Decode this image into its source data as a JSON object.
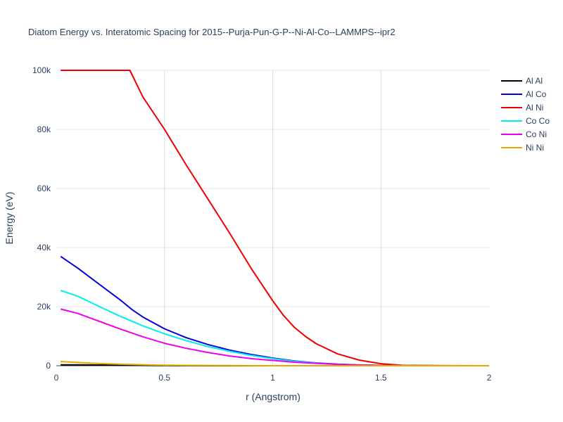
{
  "chart_data": {
    "type": "line",
    "title": "Diatom Energy vs. Interatomic Spacing for 2015--Purja-Pun-G-P--Ni-Al-Co--LAMMPS--ipr2",
    "xlabel": "r (Angstrom)",
    "ylabel": "Energy (eV)",
    "xlim": [
      0,
      2
    ],
    "ylim": [
      0,
      100000
    ],
    "x_ticks": [
      0,
      0.5,
      1,
      1.5,
      2
    ],
    "x_tick_labels": [
      "0",
      "0.5",
      "1",
      "1.5",
      "2"
    ],
    "y_ticks": [
      0,
      20000,
      40000,
      60000,
      80000,
      100000
    ],
    "y_tick_labels": [
      "0",
      "20k",
      "40k",
      "60k",
      "80k",
      "100k"
    ],
    "grid": true,
    "legend_position": "top-right",
    "series": [
      {
        "name": "Al Al",
        "color": "#000000",
        "x": [
          0.02,
          0.1,
          0.2,
          0.3,
          0.4,
          0.5,
          0.6,
          0.8,
          1.0,
          1.5,
          2.0
        ],
        "y": [
          300,
          280,
          250,
          200,
          130,
          60,
          20,
          0,
          0,
          0,
          0
        ]
      },
      {
        "name": "Al Co",
        "color": "#0000dd",
        "x": [
          0.02,
          0.1,
          0.2,
          0.3,
          0.35,
          0.4,
          0.5,
          0.6,
          0.7,
          0.8,
          0.9,
          1.0,
          1.1,
          1.2,
          1.3,
          1.4,
          1.5,
          1.6,
          1.8,
          2.0
        ],
        "y": [
          37000,
          33000,
          27500,
          22000,
          19000,
          16500,
          12500,
          9500,
          7200,
          5300,
          3800,
          2600,
          1600,
          950,
          520,
          270,
          120,
          50,
          10,
          0
        ]
      },
      {
        "name": "Al Ni",
        "color": "#ee0000",
        "x": [
          0.02,
          0.1,
          0.2,
          0.3,
          0.34,
          0.4,
          0.5,
          0.6,
          0.7,
          0.8,
          0.9,
          1.0,
          1.05,
          1.1,
          1.15,
          1.2,
          1.3,
          1.4,
          1.5,
          1.6,
          1.8,
          2.0
        ],
        "y": [
          100000,
          100000,
          100000,
          100000,
          100000,
          91000,
          80000,
          68000,
          56500,
          45000,
          33000,
          22000,
          17000,
          13000,
          10000,
          7500,
          4000,
          1900,
          700,
          150,
          20,
          0
        ]
      },
      {
        "name": "Co Co",
        "color": "#00eeee",
        "x": [
          0.02,
          0.1,
          0.2,
          0.3,
          0.4,
          0.5,
          0.6,
          0.7,
          0.8,
          0.9,
          1.0,
          1.1,
          1.2,
          1.3,
          1.4,
          1.5,
          1.6,
          1.8,
          2.0
        ],
        "y": [
          25500,
          23500,
          20000,
          16600,
          13500,
          10800,
          8500,
          6500,
          4900,
          3500,
          2400,
          1500,
          900,
          450,
          200,
          80,
          30,
          5,
          0
        ]
      },
      {
        "name": "Co Ni",
        "color": "#ee00ee",
        "x": [
          0.02,
          0.1,
          0.2,
          0.3,
          0.4,
          0.5,
          0.6,
          0.7,
          0.8,
          0.9,
          1.0,
          1.1,
          1.2,
          1.3,
          1.4,
          1.5,
          1.6,
          1.8,
          2.0
        ],
        "y": [
          19200,
          17700,
          15000,
          12300,
          9800,
          7600,
          5900,
          4500,
          3300,
          2400,
          1800,
          1200,
          800,
          450,
          220,
          90,
          30,
          5,
          0
        ]
      },
      {
        "name": "Ni Ni",
        "color": "#e8a800",
        "x": [
          0.02,
          0.1,
          0.2,
          0.3,
          0.4,
          0.5,
          0.6,
          0.8,
          1.0,
          1.5,
          2.0
        ],
        "y": [
          1400,
          1100,
          750,
          500,
          330,
          200,
          110,
          40,
          10,
          0,
          0
        ]
      }
    ]
  }
}
